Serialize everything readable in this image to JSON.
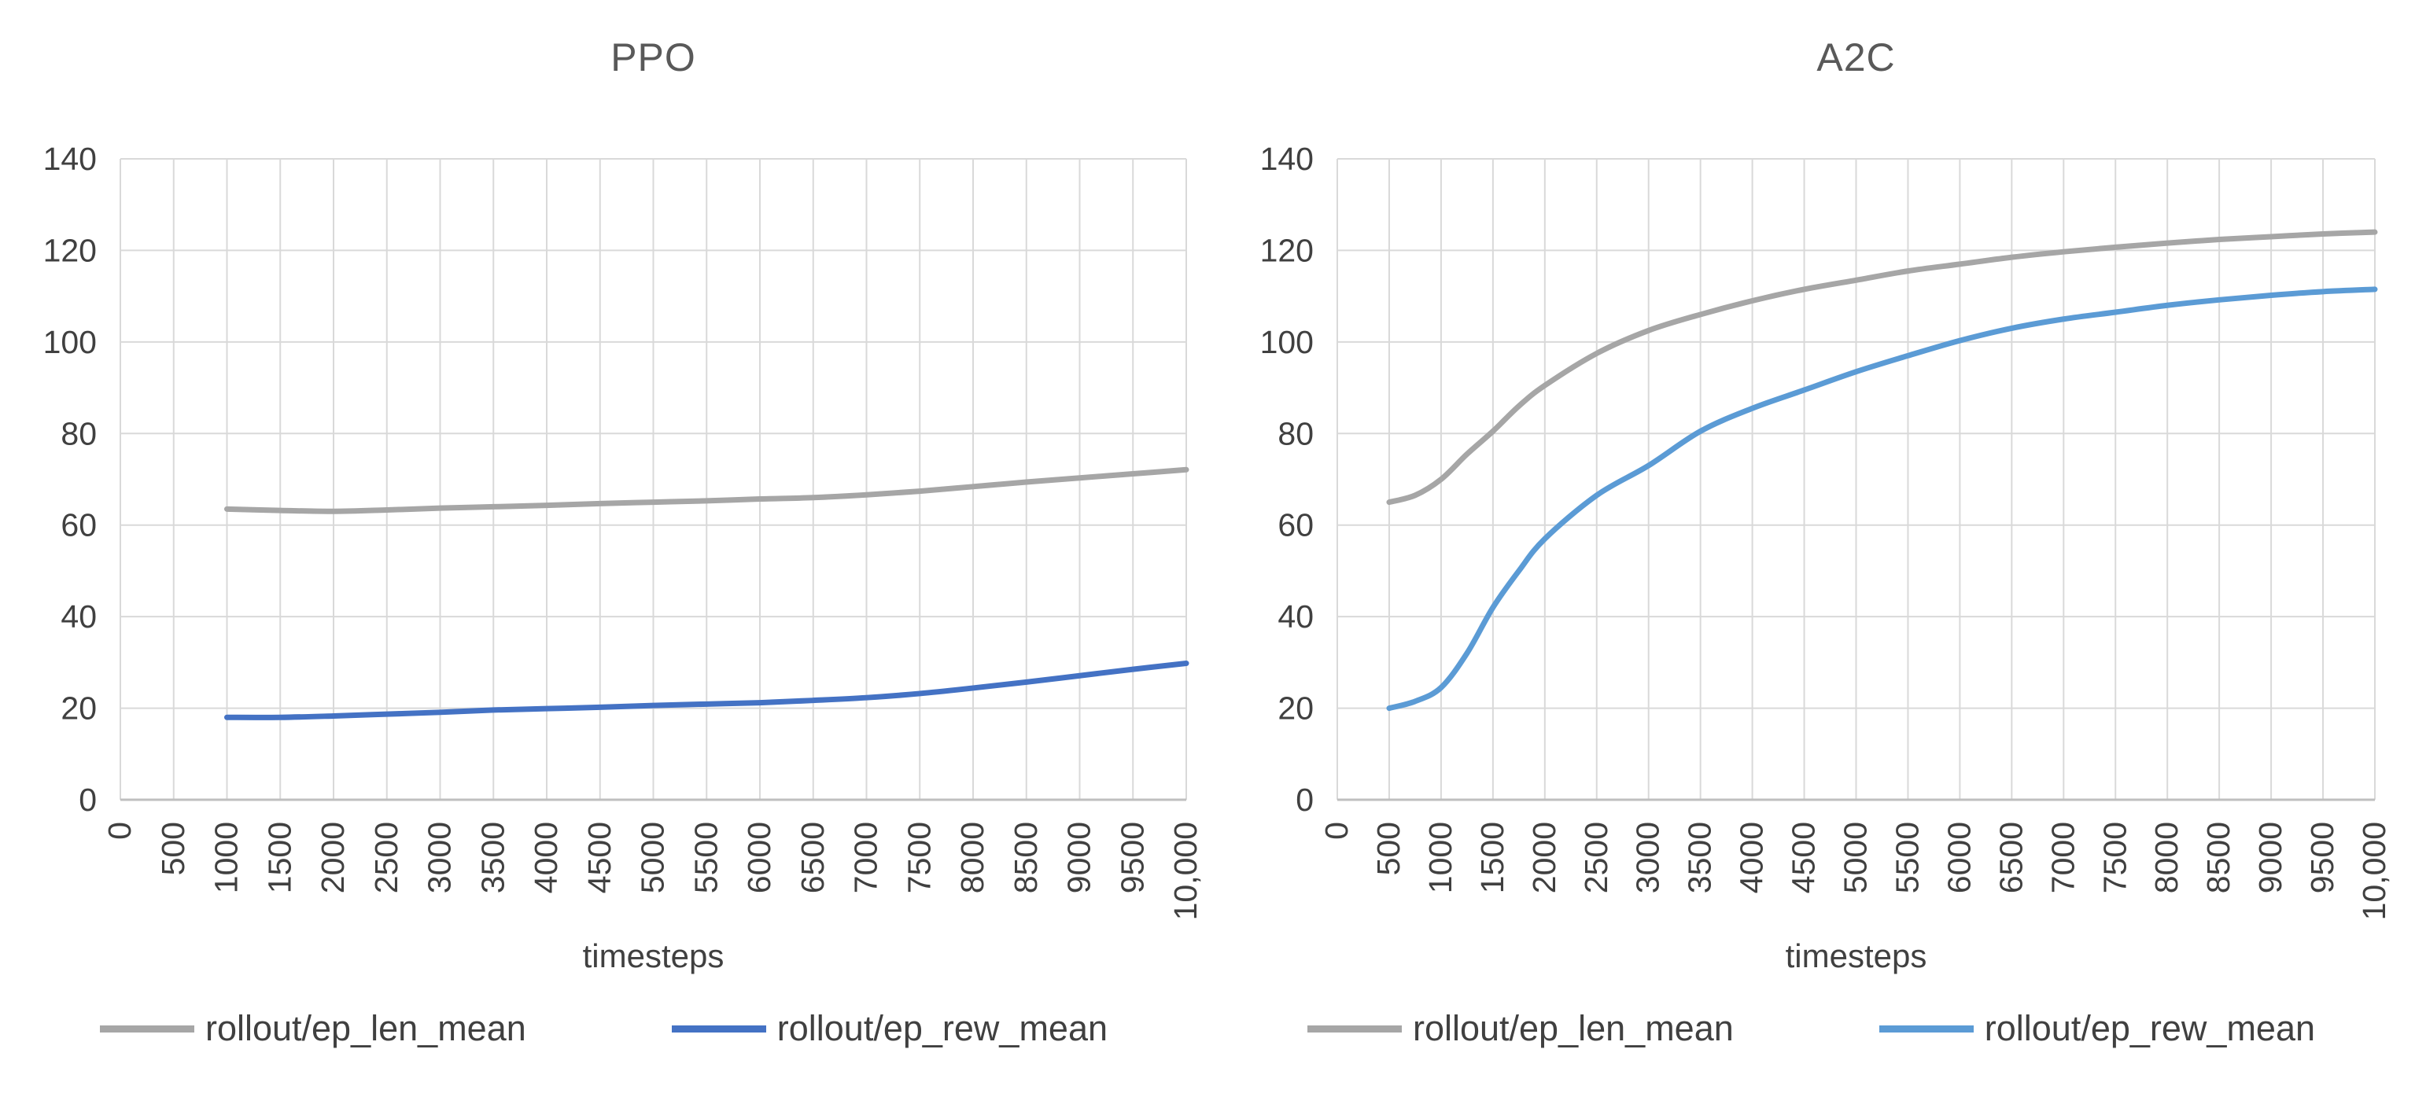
{
  "page": {
    "background": "#ffffff"
  },
  "divider": {
    "color": "#d9d9d9"
  },
  "chart_data": [
    {
      "type": "line",
      "title": "PPO",
      "xlabel": "timesteps",
      "ylabel": "",
      "xlim": [
        0,
        10000
      ],
      "ylim": [
        0,
        140
      ],
      "grid": true,
      "legend_position": "bottom",
      "y_ticks": [
        0,
        20,
        40,
        60,
        80,
        100,
        120,
        140
      ],
      "x_tick_values": [
        0,
        500,
        1000,
        1500,
        2000,
        2500,
        3000,
        3500,
        4000,
        4500,
        5000,
        5500,
        6000,
        6500,
        7000,
        7500,
        8000,
        8500,
        9000,
        9500,
        10000
      ],
      "x_tick_labels": [
        "0",
        "500",
        "1000",
        "1500",
        "2000",
        "2500",
        "3000",
        "3500",
        "4000",
        "4500",
        "5000",
        "5500",
        "6000",
        "6500",
        "7000",
        "7500",
        "8000",
        "8500",
        "9000",
        "9500",
        "10,000"
      ],
      "colors": {
        "gridline": "#d9d9d9",
        "axis": "#bfbfbf",
        "tick_text": "#404040",
        "title_text": "#595959"
      },
      "series": [
        {
          "name": "rollout/ep_len_mean",
          "color": "#a6a6a6",
          "x": [
            1000,
            1500,
            2000,
            2500,
            3000,
            3500,
            4000,
            4500,
            5000,
            5500,
            6000,
            6500,
            7000,
            7500,
            8000,
            8500,
            9000,
            9500,
            10000
          ],
          "y": [
            63.5,
            63.2,
            63.0,
            63.3,
            63.7,
            64.0,
            64.3,
            64.7,
            65.0,
            65.3,
            65.7,
            66.0,
            66.6,
            67.4,
            68.4,
            69.4,
            70.3,
            71.2,
            72.1
          ]
        },
        {
          "name": "rollout/ep_rew_mean",
          "color": "#4472c4",
          "x": [
            1000,
            1500,
            2000,
            2500,
            3000,
            3500,
            4000,
            4500,
            5000,
            5500,
            6000,
            6500,
            7000,
            7500,
            8000,
            8500,
            9000,
            9500,
            10000
          ],
          "y": [
            18.0,
            18.0,
            18.3,
            18.7,
            19.1,
            19.6,
            19.9,
            20.2,
            20.6,
            20.9,
            21.2,
            21.7,
            22.3,
            23.2,
            24.4,
            25.7,
            27.1,
            28.5,
            29.8
          ]
        }
      ]
    },
    {
      "type": "line",
      "title": "A2C",
      "xlabel": "timesteps",
      "ylabel": "",
      "xlim": [
        0,
        10000
      ],
      "ylim": [
        0,
        140
      ],
      "grid": true,
      "legend_position": "bottom",
      "y_ticks": [
        0,
        20,
        40,
        60,
        80,
        100,
        120,
        140
      ],
      "x_tick_values": [
        0,
        500,
        1000,
        1500,
        2000,
        2500,
        3000,
        3500,
        4000,
        4500,
        5000,
        5500,
        6000,
        6500,
        7000,
        7500,
        8000,
        8500,
        9000,
        9500,
        10000
      ],
      "x_tick_labels": [
        "0",
        "500",
        "1000",
        "1500",
        "2000",
        "2500",
        "3000",
        "3500",
        "4000",
        "4500",
        "5000",
        "5500",
        "6000",
        "6500",
        "7000",
        "7500",
        "8000",
        "8500",
        "9000",
        "9500",
        "10,000"
      ],
      "colors": {
        "gridline": "#d9d9d9",
        "axis": "#bfbfbf",
        "tick_text": "#404040",
        "title_text": "#595959"
      },
      "series": [
        {
          "name": "rollout/ep_len_mean",
          "color": "#a6a6a6",
          "x": [
            500,
            750,
            1000,
            1250,
            1500,
            1750,
            2000,
            2500,
            3000,
            3500,
            4000,
            4500,
            5000,
            5500,
            6000,
            6500,
            7000,
            7500,
            8000,
            8500,
            9000,
            9500,
            10000
          ],
          "y": [
            65.0,
            66.5,
            70.0,
            75.5,
            80.5,
            86.0,
            90.5,
            97.5,
            102.5,
            106.0,
            109.0,
            111.5,
            113.5,
            115.5,
            117.0,
            118.5,
            119.7,
            120.7,
            121.6,
            122.4,
            123.0,
            123.6,
            124.0
          ]
        },
        {
          "name": "rollout/ep_rew_mean",
          "color": "#5b9bd5",
          "x": [
            500,
            750,
            1000,
            1250,
            1500,
            1750,
            2000,
            2500,
            3000,
            3500,
            4000,
            4500,
            5000,
            5500,
            6000,
            6500,
            7000,
            7500,
            8000,
            8500,
            9000,
            9500,
            10000
          ],
          "y": [
            20.0,
            21.5,
            24.5,
            32.0,
            42.0,
            50.0,
            57.0,
            66.5,
            73.0,
            80.5,
            85.5,
            89.5,
            93.5,
            97.0,
            100.3,
            103.0,
            105.0,
            106.5,
            108.0,
            109.2,
            110.2,
            111.0,
            111.5
          ]
        }
      ]
    }
  ]
}
